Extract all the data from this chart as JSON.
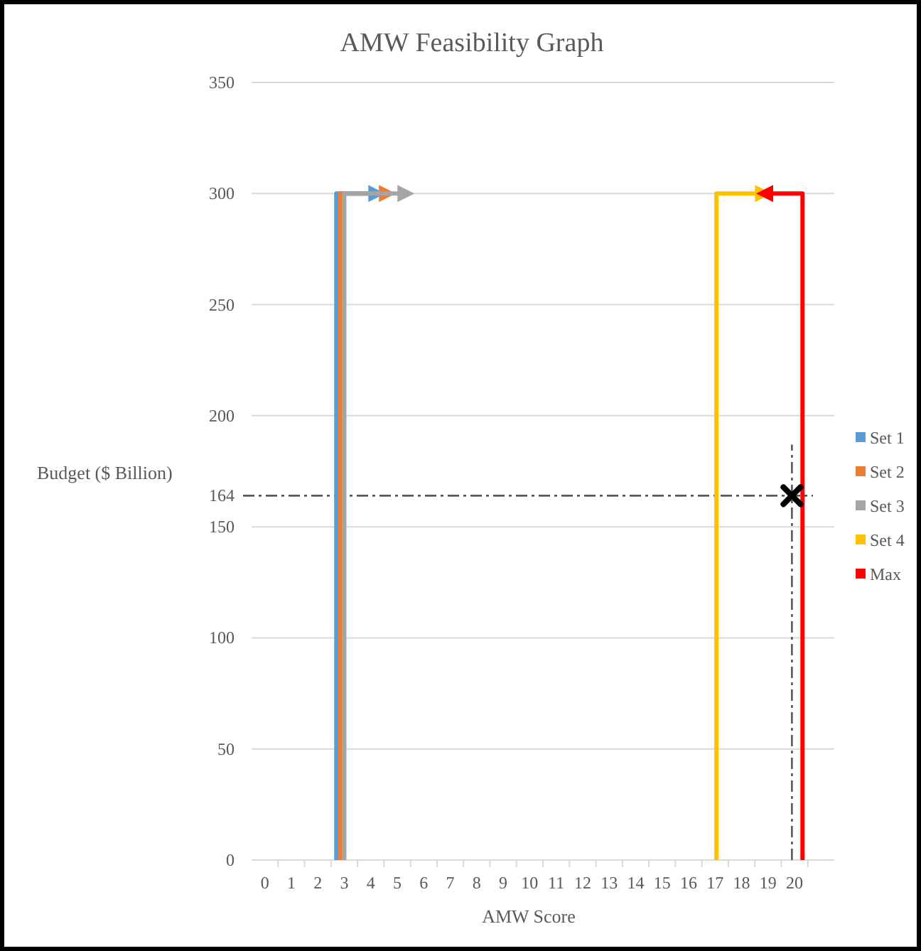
{
  "chart_data": {
    "type": "line",
    "title": "AMW Feasibility Graph",
    "xlabel": "AMW Score",
    "ylabel": "Budget ($ Billion)",
    "xlim": [
      -0.5,
      21.5
    ],
    "xticks": [
      0,
      1,
      2,
      3,
      4,
      5,
      6,
      7,
      8,
      9,
      10,
      11,
      12,
      13,
      14,
      15,
      16,
      17,
      18,
      19,
      20
    ],
    "ylim": [
      0,
      350
    ],
    "yticks": [
      0,
      50,
      100,
      150,
      200,
      250,
      300,
      350
    ],
    "grid": "y",
    "legend": "right",
    "marker": "none",
    "series": [
      {
        "name": "Set 1",
        "color": "#5b9bd5",
        "x": [
          2.7,
          2.7,
          4.1
        ],
        "values": [
          0,
          300,
          300
        ]
      },
      {
        "name": "Set 2",
        "color": "#ed7d31",
        "x": [
          2.85,
          2.85,
          4.5
        ],
        "values": [
          0,
          300,
          300
        ]
      },
      {
        "name": "Set 3",
        "color": "#a5a5a5",
        "x": [
          3,
          3,
          5.2
        ],
        "values": [
          0,
          300,
          300
        ]
      },
      {
        "name": "Set 4",
        "color": "#ffc000",
        "x": [
          17.05,
          17.05,
          18.7
        ],
        "values": [
          0,
          300,
          300
        ]
      },
      {
        "name": "Max",
        "color": "#ff0000",
        "x": [
          20.3,
          20.3,
          19
        ],
        "values": [
          0,
          300,
          300
        ]
      },
      {
        "type": "line",
        "color": "#595959",
        "x": [
          19.9,
          19.9
        ],
        "values": [
          0,
          187
        ],
        "line_style": "dashed"
      },
      {
        "type": "scatter",
        "color": "#000000",
        "x": [
          19.9
        ],
        "values": [
          164
        ],
        "marker": "cross"
      }
    ],
    "ref_lines": [
      {
        "axis": "y",
        "value": 164,
        "label": "164",
        "color": "#595959",
        "line_style": "dashed"
      }
    ]
  }
}
